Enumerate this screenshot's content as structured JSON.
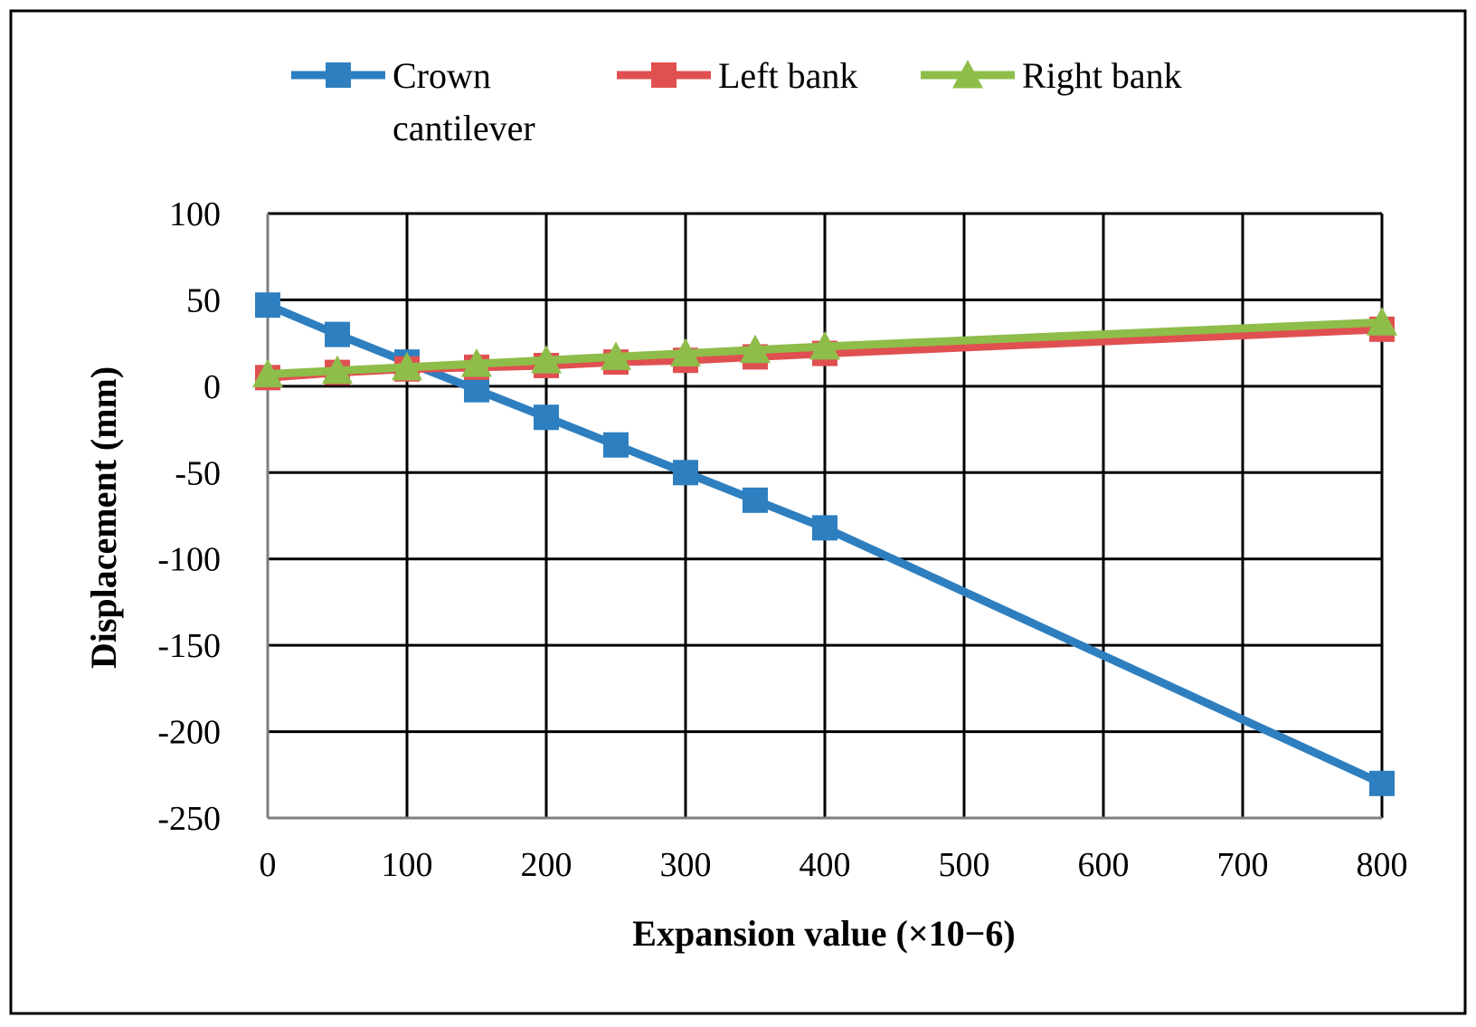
{
  "chart_data": {
    "type": "line",
    "title": "",
    "xlabel": "Expansion value (×10−6)",
    "ylabel": "Displacement (mm)",
    "xlim": [
      0,
      800
    ],
    "ylim": [
      -250,
      100
    ],
    "xticks": [
      0,
      100,
      200,
      300,
      400,
      500,
      600,
      700,
      800
    ],
    "yticks": [
      100,
      50,
      0,
      -50,
      -100,
      -150,
      -200,
      -250
    ],
    "grid": true,
    "legend_position": "top",
    "series": [
      {
        "name": "Crown cantilever",
        "legend_lines": [
          "Crown",
          "cantilever"
        ],
        "color": "#2e7fc0",
        "marker": "square",
        "x": [
          0,
          50,
          100,
          150,
          200,
          250,
          300,
          350,
          400,
          800
        ],
        "y": [
          47,
          30,
          14,
          -2,
          -18,
          -34,
          -50,
          -66,
          -82,
          -230
        ]
      },
      {
        "name": "Left bank",
        "legend_lines": [
          "Left bank"
        ],
        "color": "#e05050",
        "marker": "square",
        "x": [
          0,
          50,
          100,
          150,
          200,
          250,
          300,
          350,
          400,
          800
        ],
        "y": [
          5,
          8,
          10,
          11,
          12,
          14,
          15,
          17,
          19,
          33
        ]
      },
      {
        "name": "Right bank",
        "legend_lines": [
          "Right bank"
        ],
        "color": "#8ebd4a",
        "marker": "triangle",
        "x": [
          0,
          50,
          100,
          150,
          200,
          250,
          300,
          350,
          400,
          800
        ],
        "y": [
          7,
          9,
          11,
          13,
          15,
          17,
          19,
          21,
          23,
          37
        ]
      }
    ]
  }
}
